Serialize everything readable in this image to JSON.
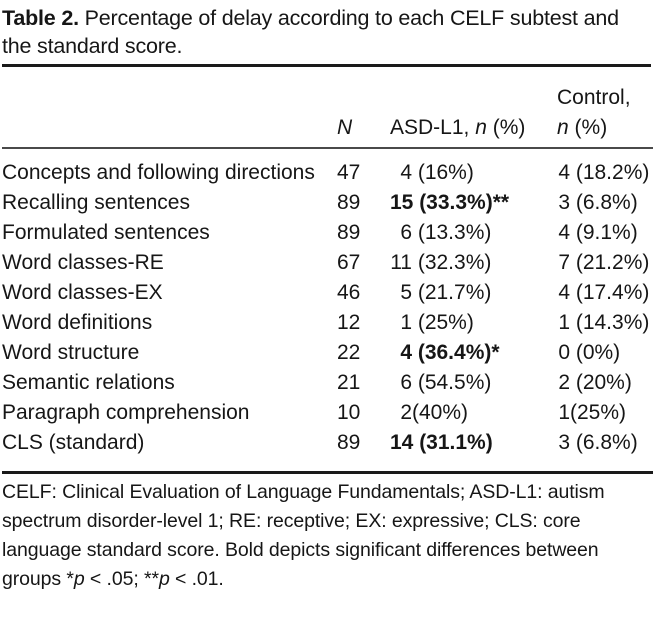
{
  "title": {
    "label": "Table 2.",
    "line1_rest": " Percentage of delay according to each CELF subtest and",
    "line2": "the standard score."
  },
  "header": {
    "n": "N",
    "asd_prefix": "ASD-L1, ",
    "asd_n": "n",
    "asd_suffix": " (%)",
    "control_line1": "Control,",
    "control_n": "n",
    "control_suffix": " (%)"
  },
  "rows": [
    {
      "label": "Concepts and following directions",
      "n": "47",
      "asd": {
        "num": "4",
        "rest": " (16%)",
        "bold": false
      },
      "control": {
        "num": "4",
        "rest": " (18.2%)"
      }
    },
    {
      "label": "Recalling sentences",
      "n": "89",
      "asd": {
        "num": "15",
        "rest": " (33.3%)**",
        "bold": true
      },
      "control": {
        "num": "3",
        "rest": " (6.8%)"
      }
    },
    {
      "label": "Formulated sentences",
      "n": "89",
      "asd": {
        "num": "6",
        "rest": " (13.3%)",
        "bold": false
      },
      "control": {
        "num": "4",
        "rest": " (9.1%)"
      }
    },
    {
      "label": "Word classes-RE",
      "n": "67",
      "asd": {
        "num": "11",
        "rest": " (32.3%)",
        "bold": false
      },
      "control": {
        "num": "7",
        "rest": " (21.2%)"
      }
    },
    {
      "label": "Word classes-EX",
      "n": "46",
      "asd": {
        "num": "5",
        "rest": " (21.7%)",
        "bold": false
      },
      "control": {
        "num": "4",
        "rest": " (17.4%)"
      }
    },
    {
      "label": "Word definitions",
      "n": "12",
      "asd": {
        "num": "1",
        "rest": " (25%)",
        "bold": false
      },
      "control": {
        "num": "1",
        "rest": " (14.3%)"
      }
    },
    {
      "label": "Word structure",
      "n": "22",
      "asd": {
        "num": "4",
        "rest": " (36.4%)*",
        "bold": true
      },
      "control": {
        "num": "0",
        "rest": " (0%)"
      }
    },
    {
      "label": "Semantic relations",
      "n": "21",
      "asd": {
        "num": "6",
        "rest": " (54.5%)",
        "bold": false
      },
      "control": {
        "num": "2",
        "rest": " (20%)"
      }
    },
    {
      "label": "Paragraph comprehension",
      "n": "10",
      "asd": {
        "num": "2",
        "rest": "(40%)",
        "bold": false
      },
      "control": {
        "num": "1",
        "rest": "(25%)"
      }
    },
    {
      "label": "CLS (standard)",
      "n": "89",
      "asd": {
        "num": "14",
        "rest": " (31.1%)",
        "bold": true
      },
      "control": {
        "num": "3",
        "rest": " (6.8%)"
      }
    }
  ],
  "footnote": {
    "line1": "CELF: Clinical Evaluation of Language Fundamentals; ASD-L1: autism",
    "line2": "spectrum disorder-level 1; RE: receptive; EX: expressive; CLS: core",
    "line3": "language standard score. Bold depicts significant differences between",
    "line4_pre": "groups *",
    "p1": "p",
    "line4_mid": " < .05; **",
    "p2": "p",
    "line4_end": " < .01."
  },
  "colors": {
    "background": "#ffffff",
    "text": "#161616",
    "rule_heavy": "#1a1a1a",
    "rule_light": "#4a4a4a"
  }
}
